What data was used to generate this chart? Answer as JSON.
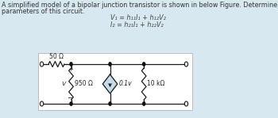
{
  "bg_color": "#d8e8f0",
  "box_color": "#ffffff",
  "title_line1": "A simplified model of a bipolar junction transistor is shown in below Figure. Determine the h",
  "title_line2": "parameters of this circuit.",
  "eq1": "V₁ = h₁₁I₁ + h₁₂V₂",
  "eq2": "I₂ = h₂₁I₁ + h₂₂V₂",
  "r1_label": "50 Ω",
  "r2_label": "950 Ω",
  "cs_label": "0.1v",
  "r3_label": "10 kΩ",
  "v_label": "v",
  "plus_label": "+",
  "minus_label": "−",
  "line_color": "#1a1a1a",
  "diamond_fill": "#c5dce8",
  "dot_color": "#111111",
  "font_size_title": 5.8,
  "font_size_eq": 5.8,
  "font_size_labels": 5.5
}
